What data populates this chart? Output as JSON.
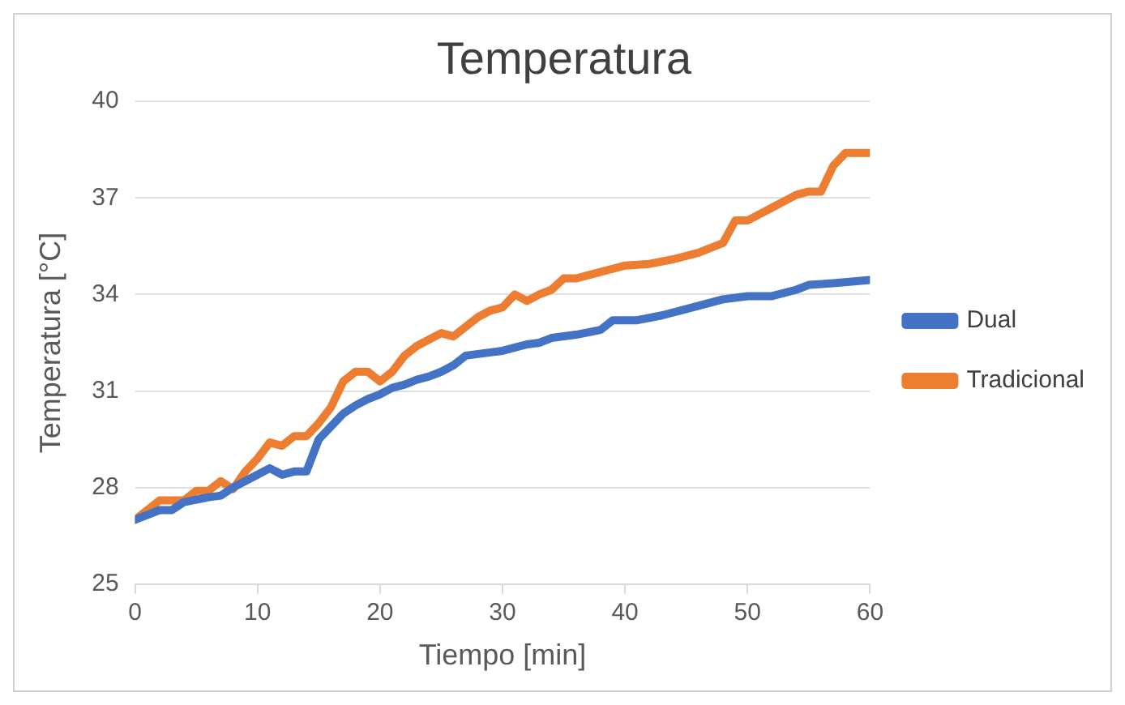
{
  "chart_data": {
    "type": "line",
    "title": "Temperatura",
    "xlabel": "Tiempo [min]",
    "ylabel": "Temperatura [°C]",
    "xlim": [
      0,
      60
    ],
    "xticks": [
      0,
      10,
      20,
      30,
      40,
      50,
      60
    ],
    "ylim": [
      25,
      40
    ],
    "yticks": [
      25,
      28,
      31,
      34,
      37,
      40
    ],
    "grid": "y",
    "legend": "right",
    "marker": "none",
    "line_style": "solid",
    "series": [
      {
        "name": "Dual",
        "color": "#4472c4",
        "x": [
          0,
          2,
          3,
          4,
          6,
          7,
          8,
          10,
          11,
          12,
          13,
          14,
          15,
          16,
          17,
          18,
          19,
          20,
          21,
          22,
          23,
          24,
          25,
          26,
          27,
          28,
          29,
          30,
          31,
          32,
          33,
          34,
          36,
          38,
          39,
          41,
          43,
          45,
          47,
          48,
          50,
          51,
          52,
          54,
          55,
          57,
          60
        ],
        "values": [
          27.0,
          27.3,
          27.3,
          27.55,
          27.7,
          27.75,
          28.0,
          28.4,
          28.6,
          28.4,
          28.5,
          28.5,
          29.5,
          29.9,
          30.3,
          30.55,
          30.75,
          30.9,
          31.1,
          31.2,
          31.35,
          31.45,
          31.6,
          31.8,
          32.1,
          32.15,
          32.2,
          32.25,
          32.35,
          32.45,
          32.5,
          32.65,
          32.75,
          32.9,
          33.2,
          33.2,
          33.35,
          33.55,
          33.75,
          33.85,
          33.95,
          33.95,
          33.95,
          34.15,
          34.3,
          34.35,
          34.45
        ]
      },
      {
        "name": "Tradicional",
        "color": "#ed7d31",
        "x": [
          0,
          2,
          4,
          5,
          6,
          7,
          8,
          9,
          10,
          11,
          12,
          13,
          14,
          15,
          16,
          17,
          18,
          19,
          20,
          21,
          22,
          23,
          24,
          25,
          26,
          27,
          28,
          29,
          30,
          31,
          32,
          33,
          34,
          35,
          36,
          38,
          40,
          42,
          44,
          46,
          48,
          49,
          50,
          52,
          54,
          55,
          56,
          57,
          58,
          60
        ],
        "values": [
          27.0,
          27.6,
          27.6,
          27.9,
          27.9,
          28.2,
          27.95,
          28.5,
          28.9,
          29.4,
          29.3,
          29.6,
          29.6,
          30.0,
          30.5,
          31.3,
          31.6,
          31.6,
          31.3,
          31.6,
          32.1,
          32.4,
          32.6,
          32.8,
          32.7,
          33.0,
          33.3,
          33.5,
          33.6,
          34.0,
          33.8,
          34.0,
          34.15,
          34.5,
          34.5,
          34.7,
          34.9,
          34.95,
          35.1,
          35.3,
          35.6,
          36.3,
          36.3,
          36.7,
          37.1,
          37.2,
          37.2,
          38.0,
          38.4,
          38.4
        ]
      }
    ]
  }
}
